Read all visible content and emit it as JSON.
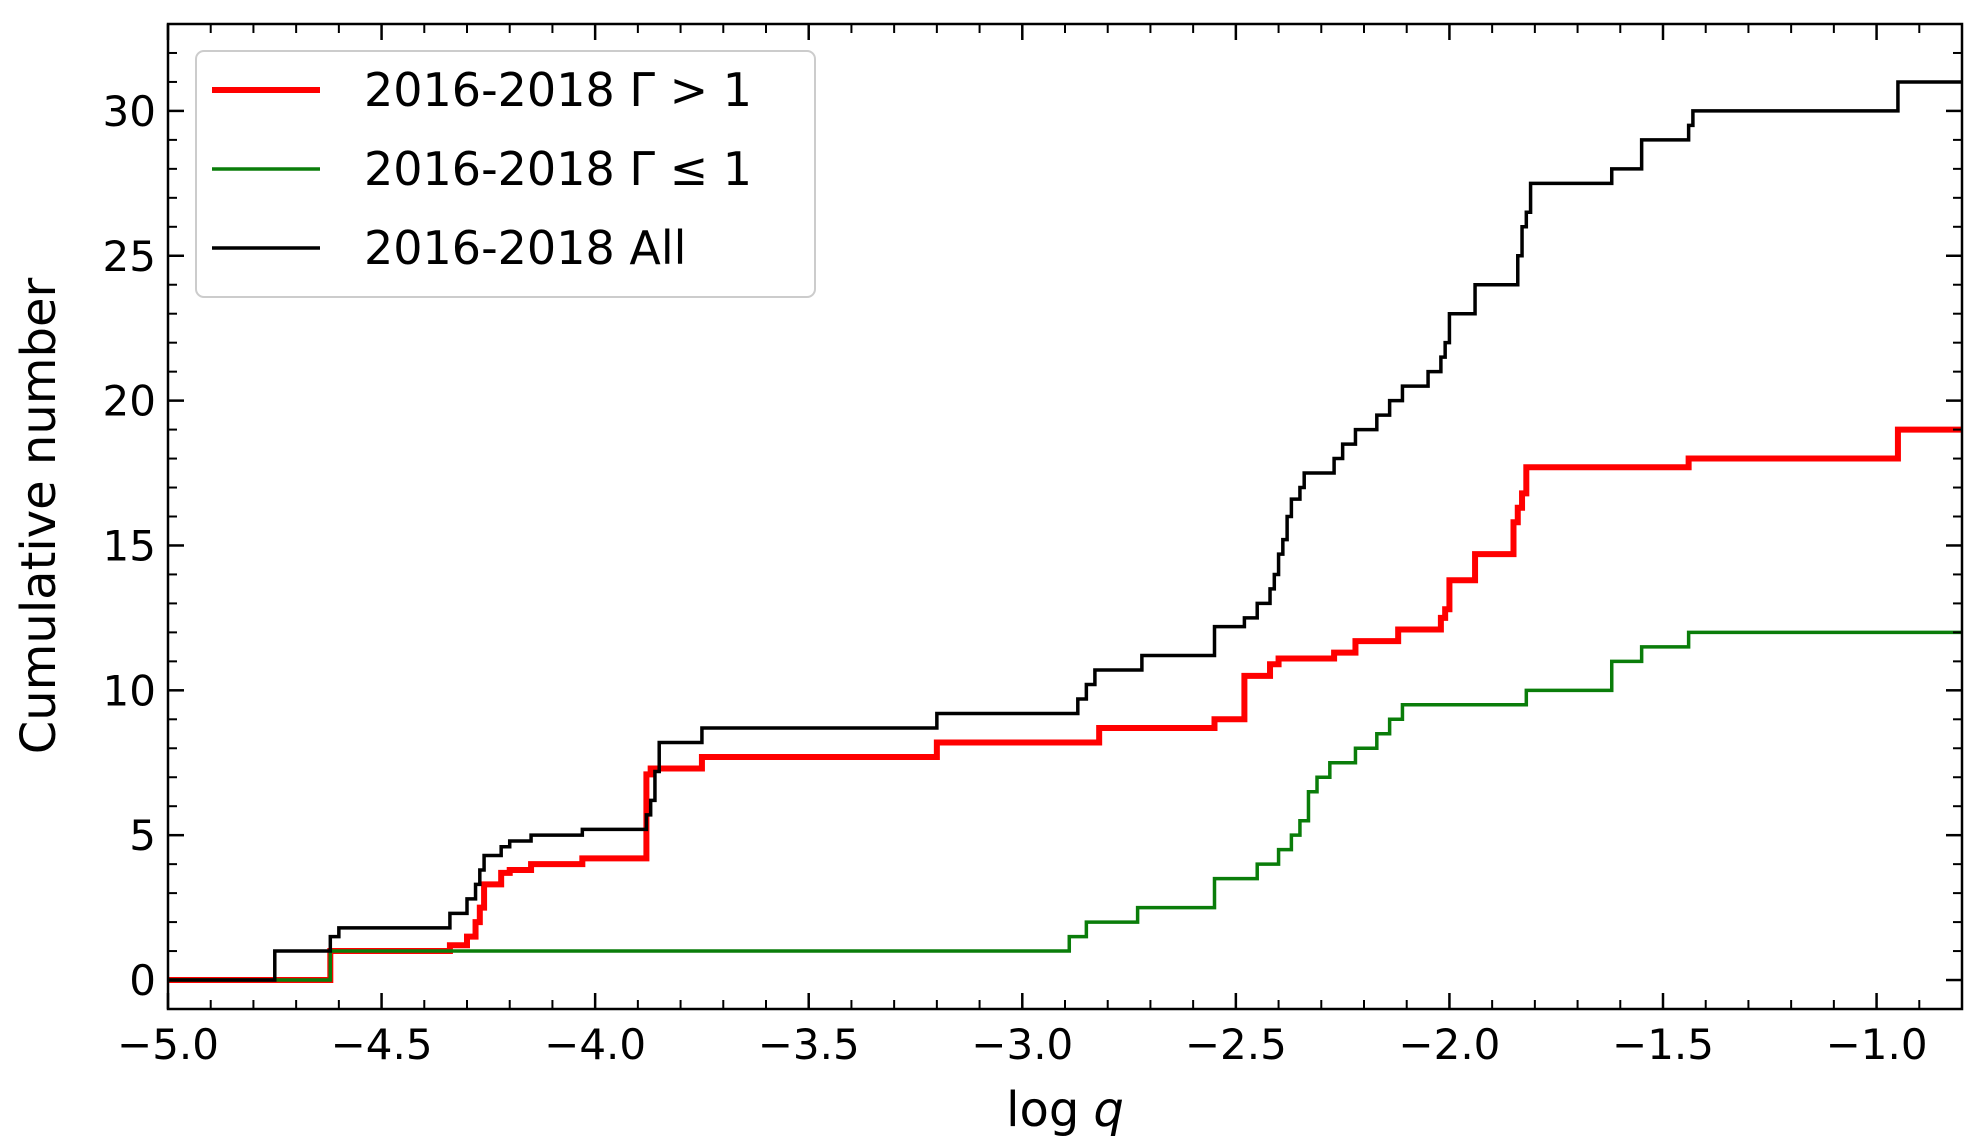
{
  "chart_data": {
    "type": "line",
    "step": "post",
    "title": "",
    "xlabel": "log",
    "xlabel_italic": "q",
    "ylabel": "Cumulative number",
    "xlim": [
      -5.0,
      -0.8
    ],
    "ylim": [
      -1,
      33
    ],
    "xticks": [
      -5.0,
      -4.5,
      -4.0,
      -3.5,
      -3.0,
      -2.5,
      -2.0,
      -1.5,
      -1.0
    ],
    "xtick_labels": [
      "−5.0",
      "−4.5",
      "−4.0",
      "−3.5",
      "−3.0",
      "−2.5",
      "−2.0",
      "−1.5",
      "−1.0"
    ],
    "yticks": [
      0,
      5,
      10,
      15,
      20,
      25,
      30
    ],
    "ytick_labels": [
      "0",
      "5",
      "10",
      "15",
      "20",
      "25",
      "30"
    ],
    "grid": false,
    "legend_position": "top-left",
    "series": [
      {
        "name": "2016-2018 Γ > 1",
        "color": "#ff0000",
        "line_width": "thick",
        "x": [
          -5.0,
          -4.62,
          -4.34,
          -4.3,
          -4.28,
          -4.27,
          -4.26,
          -4.22,
          -4.2,
          -4.15,
          -4.03,
          -3.88,
          -3.87,
          -3.75,
          -3.2,
          -2.82,
          -2.55,
          -2.48,
          -2.42,
          -2.4,
          -2.27,
          -2.22,
          -2.12,
          -2.02,
          -2.01,
          -2.0,
          -1.94,
          -1.85,
          -1.84,
          -1.83,
          -1.82,
          -1.44,
          -0.95
        ],
        "y": [
          0,
          1,
          1.2,
          1.5,
          2,
          2.5,
          3.3,
          3.7,
          3.8,
          4,
          4.2,
          7.1,
          7.3,
          7.7,
          8.2,
          8.7,
          9.0,
          10.5,
          10.9,
          11.1,
          11.3,
          11.7,
          12.1,
          12.5,
          12.8,
          13.8,
          14.7,
          15.8,
          16.3,
          16.8,
          17.7,
          18.0,
          19.0
        ]
      },
      {
        "name": "2016-2018 Γ ≤ 1",
        "color": "#0a7d0a",
        "line_width": "normal",
        "x": [
          -5.0,
          -4.62,
          -2.89,
          -2.85,
          -2.73,
          -2.55,
          -2.45,
          -2.4,
          -2.37,
          -2.35,
          -2.33,
          -2.31,
          -2.28,
          -2.22,
          -2.17,
          -2.14,
          -2.11,
          -1.82,
          -1.62,
          -1.55,
          -1.44
        ],
        "y": [
          0,
          1,
          1.5,
          2,
          2.5,
          3.5,
          4,
          4.5,
          5,
          5.5,
          6.5,
          7,
          7.5,
          8,
          8.5,
          9,
          9.5,
          10,
          11,
          11.5,
          12
        ]
      },
      {
        "name": "2016-2018 All",
        "color": "#000000",
        "line_width": "normal",
        "x": [
          -5.0,
          -4.75,
          -4.62,
          -4.6,
          -4.34,
          -4.3,
          -4.28,
          -4.27,
          -4.26,
          -4.22,
          -4.2,
          -4.15,
          -4.03,
          -3.88,
          -3.87,
          -3.86,
          -3.85,
          -3.75,
          -3.2,
          -2.87,
          -2.85,
          -2.83,
          -2.72,
          -2.55,
          -2.48,
          -2.45,
          -2.42,
          -2.41,
          -2.4,
          -2.39,
          -2.38,
          -2.37,
          -2.35,
          -2.34,
          -2.27,
          -2.25,
          -2.22,
          -2.17,
          -2.14,
          -2.11,
          -2.05,
          -2.02,
          -2.01,
          -2.0,
          -1.94,
          -1.84,
          -1.83,
          -1.82,
          -1.81,
          -1.62,
          -1.55,
          -1.44,
          -1.43,
          -0.95
        ],
        "y": [
          0,
          1,
          1.5,
          1.8,
          2.3,
          2.8,
          3.3,
          3.8,
          4.3,
          4.6,
          4.8,
          5.0,
          5.2,
          5.7,
          6.2,
          7.2,
          8.2,
          8.7,
          9.2,
          9.7,
          10.2,
          10.7,
          11.2,
          12.2,
          12.5,
          13.0,
          13.5,
          14.0,
          14.7,
          15.2,
          16.0,
          16.6,
          17.0,
          17.5,
          18.0,
          18.5,
          19.0,
          19.5,
          20.0,
          20.5,
          21.0,
          21.5,
          22.0,
          23.0,
          24.0,
          25.0,
          26.0,
          26.5,
          27.5,
          28.0,
          29.0,
          29.5,
          30.0,
          31.0
        ]
      }
    ]
  }
}
